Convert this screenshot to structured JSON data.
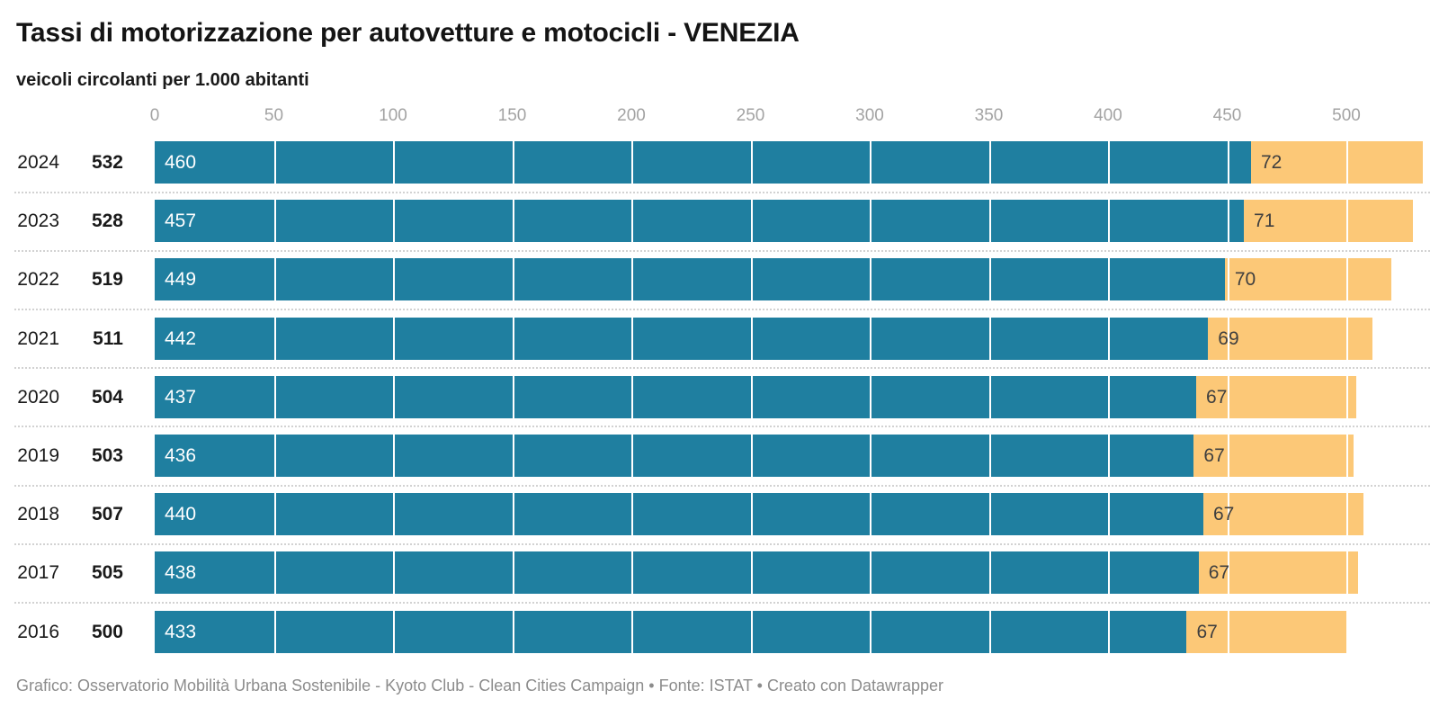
{
  "header": {
    "title": "Tassi di motorizzazione per autovetture e motocicli - VENEZIA",
    "subtitle": "veicoli circolanti per 1.000 abitanti"
  },
  "footer": {
    "credit": "Grafico: Osservatorio Mobilità Urbana Sostenibile - Kyoto Club - Clean Cities Campaign • Fonte: ISTAT • Creato con Datawrapper"
  },
  "colors": {
    "cars_segment": "#1f7fa0",
    "motorcycles_segment": "#fcc877",
    "bar_label_on_cars": "#ffffff",
    "bar_label_on_motorcycles": "#3f3f3f",
    "axis_label": "#a3a3a3",
    "gridline": "#ffffff",
    "separator": "#d2d2d2",
    "text": "#1a1a1a",
    "footer_text": "#8c8c8c"
  },
  "chart_data": {
    "type": "bar",
    "orientation": "horizontal",
    "stacked": true,
    "title": "Tassi di motorizzazione per autovetture e motocicli - VENEZIA",
    "subtitle": "veicoli circolanti per 1.000 abitanti",
    "categories": [
      "2024",
      "2023",
      "2022",
      "2021",
      "2020",
      "2019",
      "2018",
      "2017",
      "2016"
    ],
    "totals": [
      532,
      528,
      519,
      511,
      504,
      503,
      507,
      505,
      500
    ],
    "series": [
      {
        "name": "autovetture",
        "values": [
          460,
          457,
          449,
          442,
          437,
          436,
          440,
          438,
          433
        ]
      },
      {
        "name": "motocicli",
        "values": [
          72,
          71,
          70,
          69,
          67,
          67,
          67,
          67,
          67
        ]
      }
    ],
    "x_ticks": [
      0,
      50,
      100,
      150,
      200,
      250,
      300,
      350,
      400,
      450,
      500
    ],
    "xlim": [
      0,
      532
    ],
    "grid": true,
    "legend": false,
    "value_labels": true
  }
}
